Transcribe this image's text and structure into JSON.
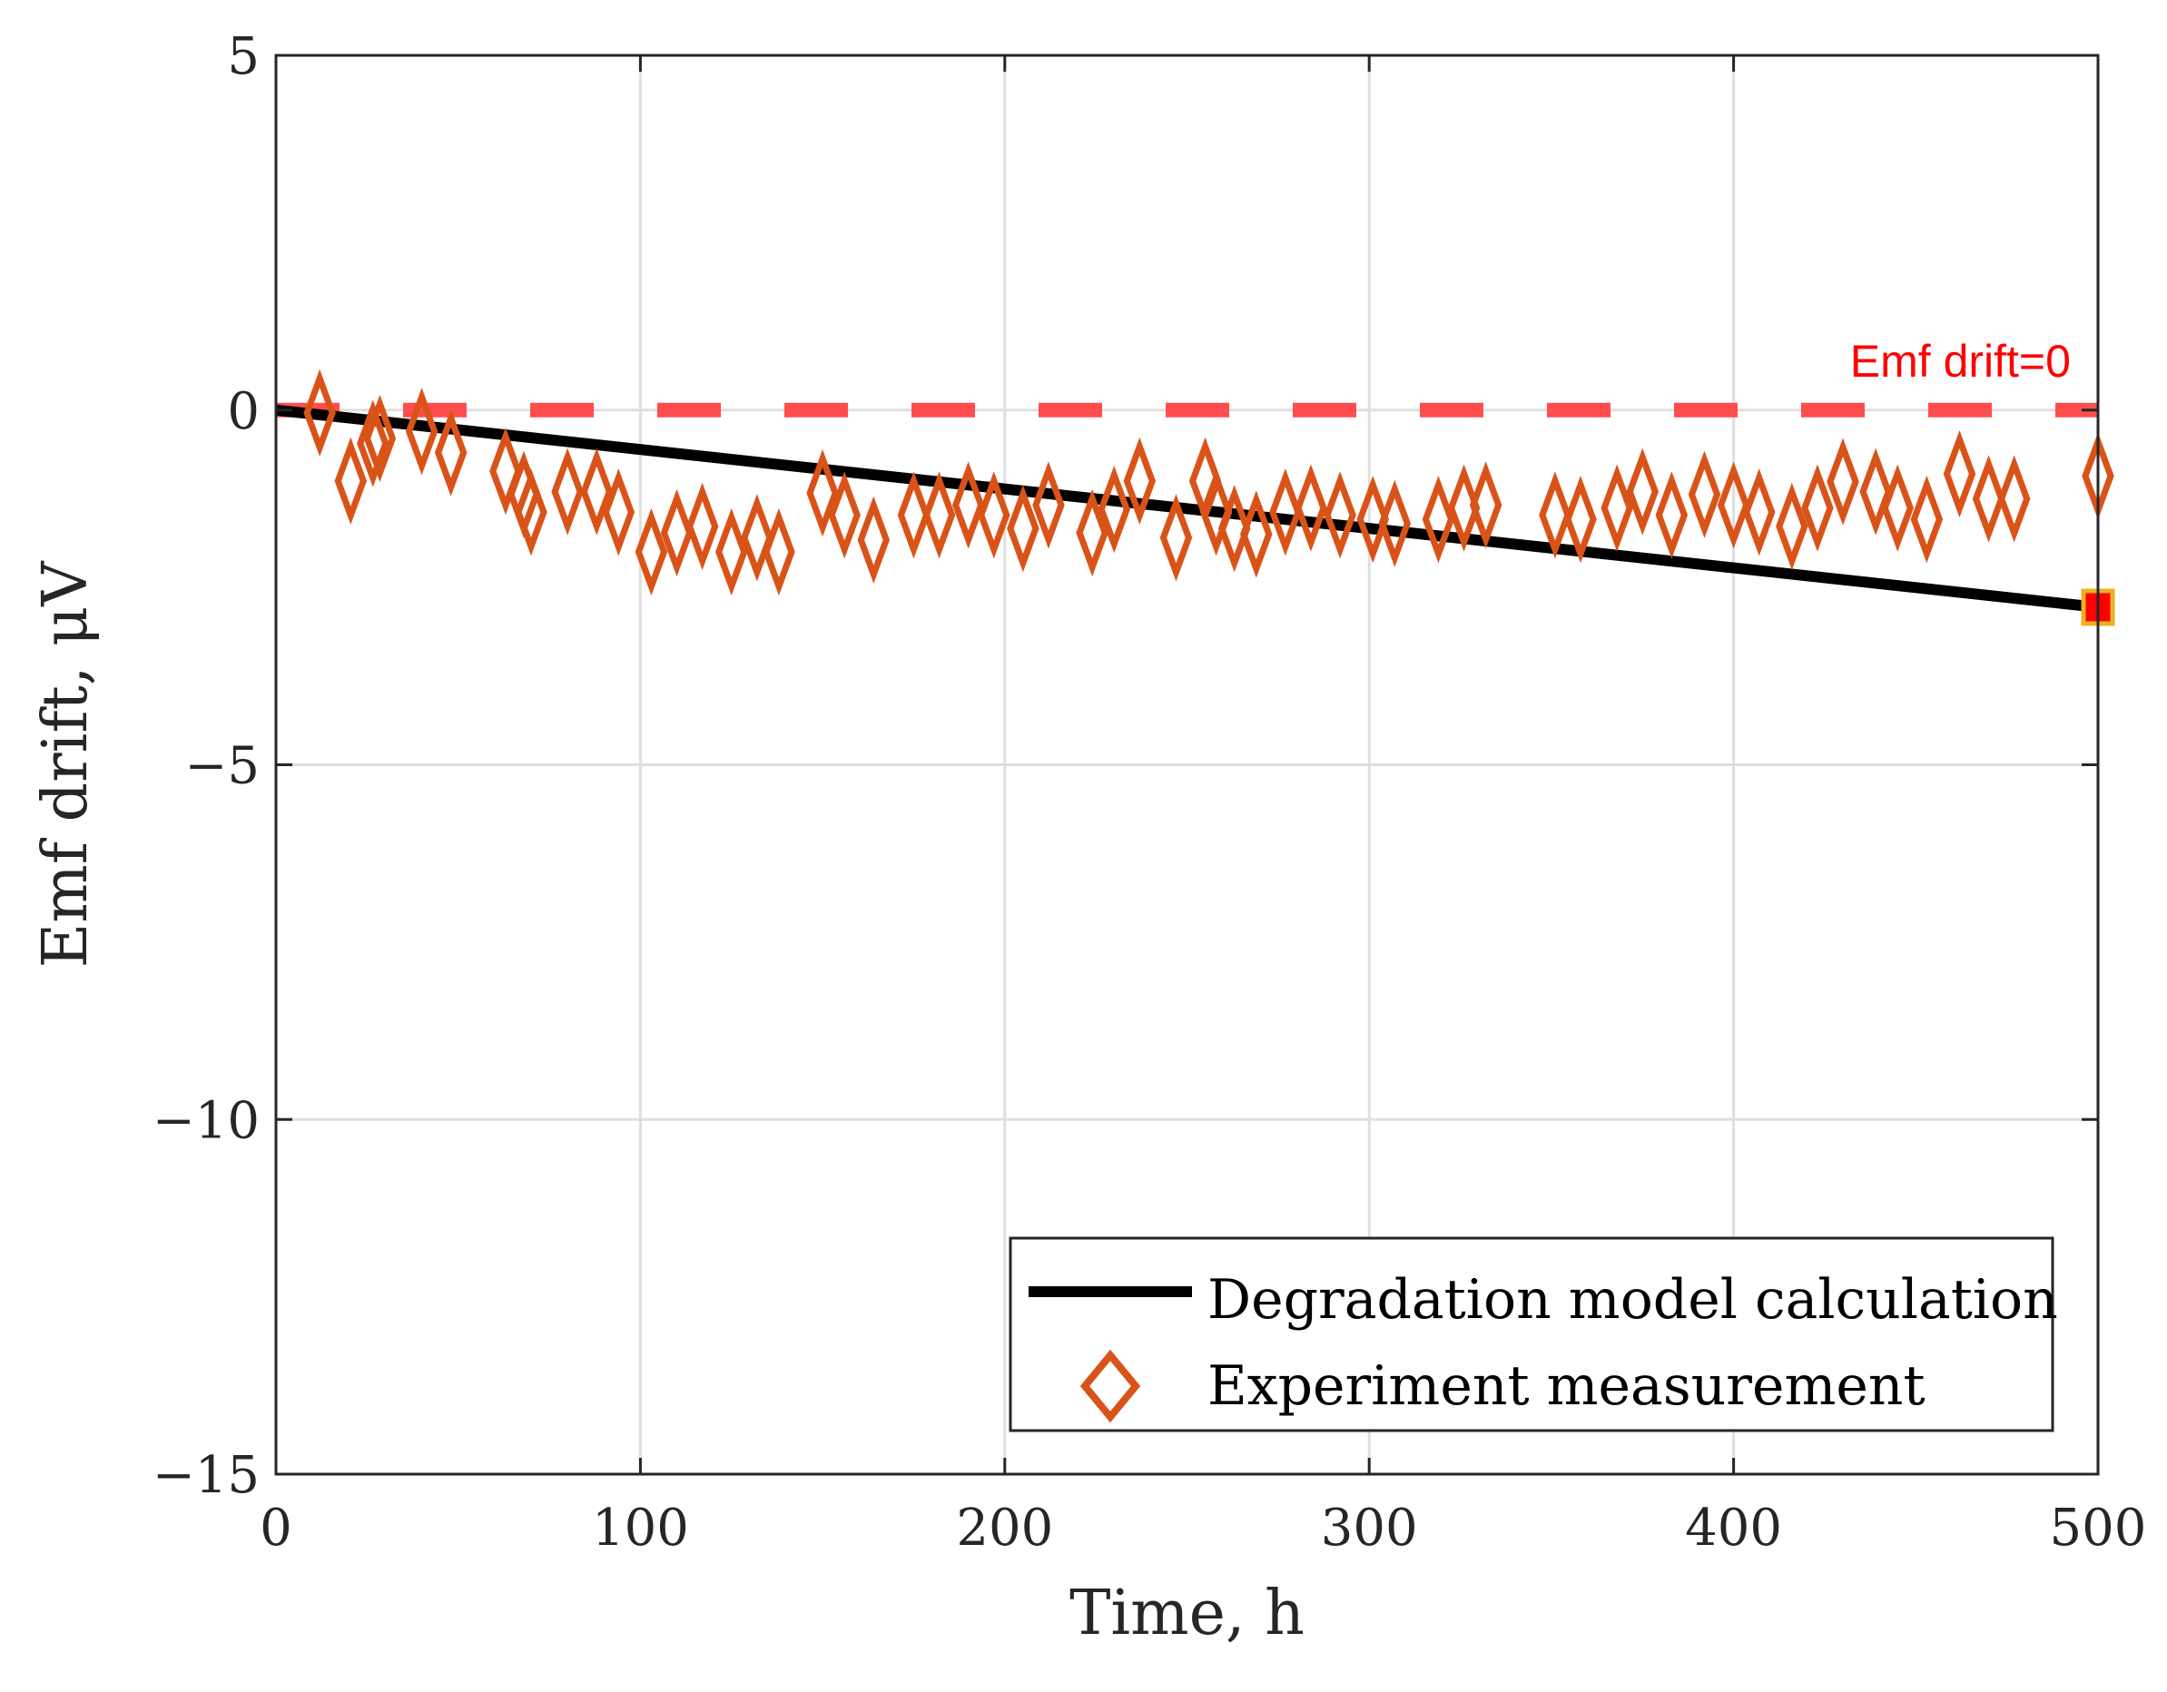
{
  "chart_data": {
    "type": "line",
    "title": "",
    "xlabel": "Time, h",
    "ylabel": "Emf drift, μV",
    "xlim": [
      0,
      500
    ],
    "ylim": [
      -15,
      5
    ],
    "xticks": [
      0,
      100,
      200,
      300,
      400,
      500
    ],
    "yticks": [
      5,
      0,
      -5,
      -10,
      -15
    ],
    "xtick_labels": [
      "0",
      "100",
      "200",
      "300",
      "400",
      "500"
    ],
    "ytick_labels": [
      "5",
      "0",
      "−5",
      "−10",
      "−15"
    ],
    "grid": true,
    "legend_position": "bottom-right",
    "series": [
      {
        "name": "Degradation model calculation",
        "type": "line",
        "color": "#000000",
        "x": [
          0,
          500
        ],
        "y": [
          0,
          -2.78
        ]
      },
      {
        "name": "Experiment measurement",
        "type": "scatter",
        "marker": "diamond",
        "color": "#d95319",
        "x": [
          12,
          20.5,
          26.6,
          28.5,
          40,
          48,
          63,
          70,
          68,
          80,
          88,
          94,
          103,
          110,
          117,
          125,
          132,
          138,
          150,
          156,
          164,
          175,
          182,
          190,
          197,
          205,
          212,
          224,
          230,
          237,
          247,
          255,
          258,
          263,
          269,
          277,
          284,
          292,
          301,
          307,
          319,
          326,
          332,
          351,
          358,
          368,
          375,
          383,
          392,
          400,
          407,
          416,
          423,
          430,
          439,
          445,
          453,
          462,
          470,
          477,
          500
        ],
        "y": [
          -0.04,
          -1.0,
          -0.47,
          -0.4,
          -0.3,
          -0.6,
          -0.86,
          -1.44,
          -1.19,
          -1.15,
          -1.15,
          -1.44,
          -2.0,
          -1.73,
          -1.64,
          -2.0,
          -1.8,
          -2.0,
          -1.17,
          -1.48,
          -1.83,
          -1.48,
          -1.48,
          -1.34,
          -1.48,
          -1.67,
          -1.34,
          -1.73,
          -1.4,
          -1.0,
          -1.8,
          -1.0,
          -1.44,
          -1.67,
          -1.75,
          -1.44,
          -1.38,
          -1.48,
          -1.54,
          -1.6,
          -1.54,
          -1.38,
          -1.34,
          -1.48,
          -1.54,
          -1.38,
          -1.15,
          -1.48,
          -1.19,
          -1.34,
          -1.44,
          -1.64,
          -1.38,
          -1.01,
          -1.15,
          -1.38,
          -1.54,
          -0.9,
          -1.25,
          -1.25,
          -0.93
        ]
      },
      {
        "name": "Emf drift=0",
        "type": "dashed-line",
        "color": "#ff4d4d",
        "x": [
          0,
          500
        ],
        "y": [
          0,
          0
        ]
      },
      {
        "name": "model endpoint",
        "type": "marker",
        "marker": "square",
        "color": "#ff0000",
        "edge_color": "#edb120",
        "x": [
          500
        ],
        "y": [
          -2.78
        ]
      }
    ],
    "annotations": [
      {
        "text": "Emf drift=0",
        "x": 495,
        "y": 0.6,
        "color": "#ff0000"
      }
    ],
    "legend": [
      "Degradation model calculation",
      "Experiment measurement"
    ]
  }
}
